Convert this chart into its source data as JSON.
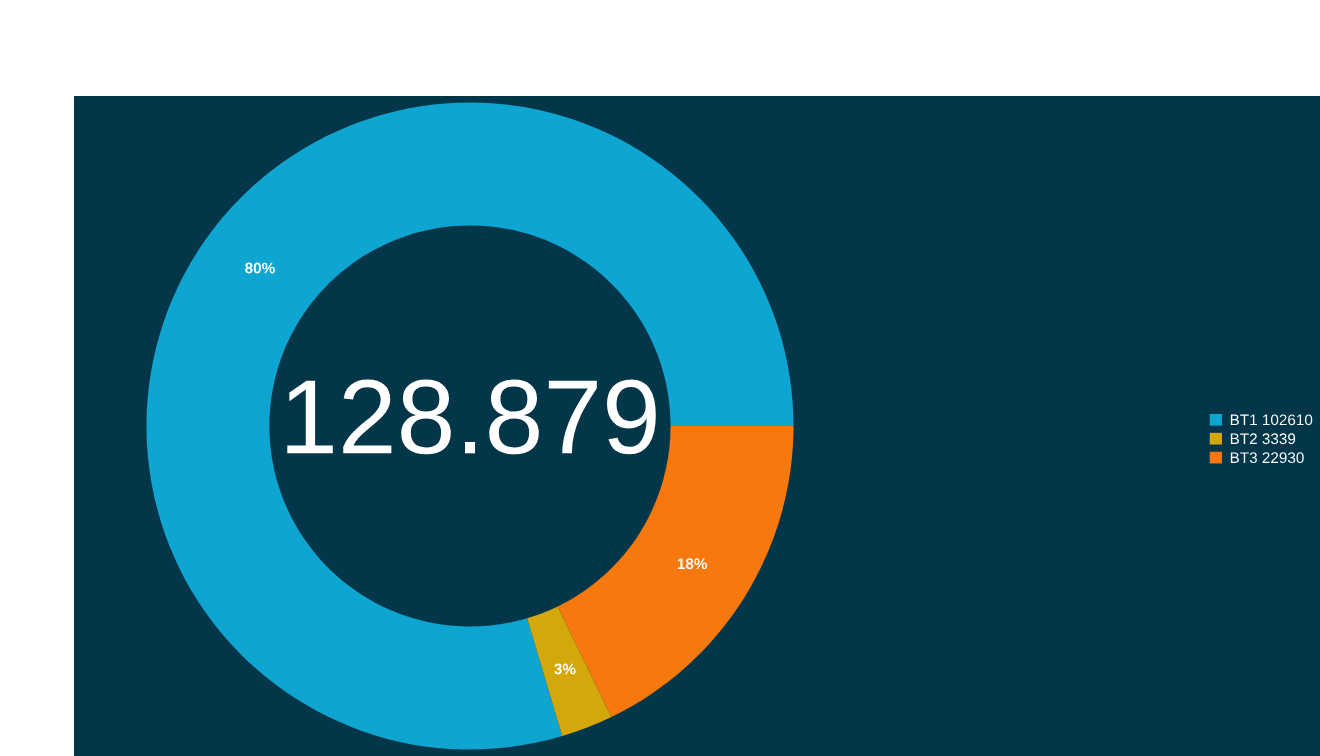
{
  "chart_data": {
    "type": "donut",
    "categories": [
      "BT1 102610",
      "BT2 3339",
      "BT3 22930"
    ],
    "values": [
      79.6,
      2.6,
      17.8
    ],
    "colors": [
      "#0ea5d0",
      "#d4a80a",
      "#f7780c"
    ],
    "value_labels": [
      "80%",
      "3%",
      "18%"
    ],
    "annotations": [
      "128.879"
    ],
    "legend": "right"
  }
}
